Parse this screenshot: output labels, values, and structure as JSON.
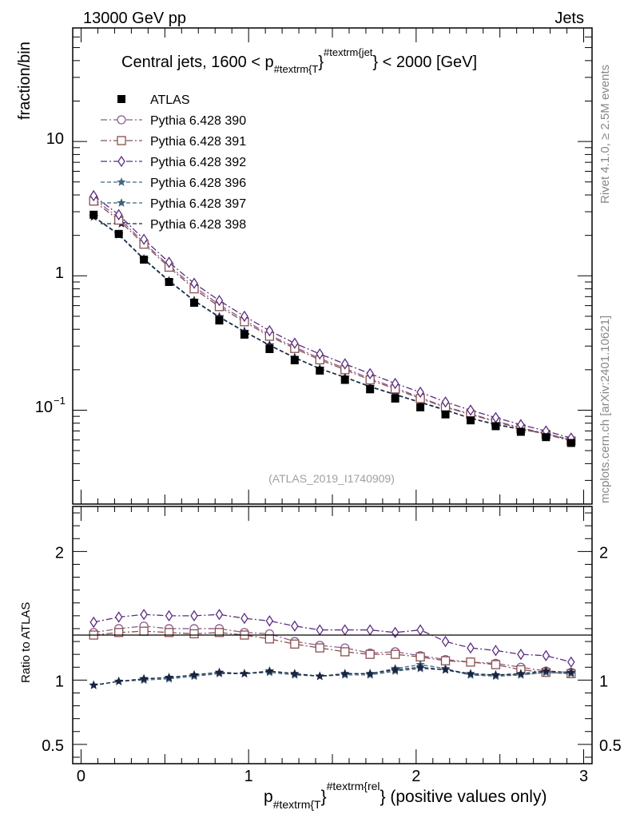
{
  "header": {
    "left": "13000 GeV pp",
    "right": "Jets"
  },
  "side_labels": {
    "top": "Rivet 4.1.0, ≥ 2.5M events",
    "bottom": "mcplots.cern.ch [arXiv:2401.10621]"
  },
  "watermark": "(ATLAS_2019_I1740909)",
  "colors": {
    "atlas": "#000000",
    "p390": "#8b5e8f",
    "p391": "#8a4f4f",
    "p392": "#5a2d82",
    "p396": "#3f6a82",
    "p397": "#3a6478",
    "p398": "#1a2340"
  },
  "chart_data": [
    {
      "type": "line",
      "name": "main",
      "title_parts": {
        "pre": "Central jets, 1600 < p",
        "sub": "#textrm{T",
        "mid": "}",
        "sup": "#textrm{jet",
        "post": "} < 2000 [GeV]"
      },
      "ylabel": "fraction/bin",
      "yscale": "log",
      "ylim": [
        0.02,
        70
      ],
      "xlim": [
        -0.05,
        3.05
      ],
      "ytick_labels": {
        "ten": "10",
        "one": "1",
        "tenth_base": "10",
        "tenth_exp": "−1"
      },
      "x": [
        0.075,
        0.225,
        0.375,
        0.525,
        0.675,
        0.825,
        0.975,
        1.125,
        1.275,
        1.425,
        1.575,
        1.725,
        1.875,
        2.025,
        2.175,
        2.325,
        2.475,
        2.625,
        2.775,
        2.925
      ],
      "series": [
        {
          "name": "ATLAS",
          "marker": "filled-square",
          "values": [
            2.85,
            2.05,
            1.32,
            0.9,
            0.63,
            0.465,
            0.365,
            0.285,
            0.235,
            0.197,
            0.168,
            0.143,
            0.122,
            0.105,
            0.093,
            0.084,
            0.076,
            0.069,
            0.063,
            0.057
          ]
        },
        {
          "name": "Pythia 6.428 390",
          "marker": "open-circle",
          "values": [
            3.75,
            2.7,
            1.77,
            1.19,
            0.83,
            0.61,
            0.47,
            0.363,
            0.295,
            0.243,
            0.205,
            0.172,
            0.147,
            0.124,
            0.106,
            0.094,
            0.083,
            0.074,
            0.067,
            0.06
          ]
        },
        {
          "name": "Pythia 6.428 391",
          "marker": "open-square",
          "values": [
            3.6,
            2.6,
            1.72,
            1.16,
            0.8,
            0.59,
            0.455,
            0.355,
            0.288,
            0.237,
            0.2,
            0.168,
            0.144,
            0.122,
            0.105,
            0.093,
            0.082,
            0.073,
            0.066,
            0.059
          ]
        },
        {
          "name": "Pythia 6.428 392",
          "marker": "open-diamond",
          "values": [
            3.95,
            2.85,
            1.87,
            1.26,
            0.88,
            0.655,
            0.5,
            0.39,
            0.315,
            0.262,
            0.221,
            0.187,
            0.158,
            0.136,
            0.115,
            0.1,
            0.088,
            0.078,
            0.07,
            0.062
          ]
        },
        {
          "name": "Pythia 6.428 396",
          "marker": "star",
          "values": [
            2.75,
            2.03,
            1.33,
            0.92,
            0.655,
            0.495,
            0.385,
            0.305,
            0.247,
            0.204,
            0.176,
            0.15,
            0.131,
            0.115,
            0.101,
            0.087,
            0.079,
            0.072,
            0.067,
            0.06
          ]
        },
        {
          "name": "Pythia 6.428 397",
          "marker": "star",
          "values": [
            2.74,
            2.02,
            1.32,
            0.91,
            0.65,
            0.49,
            0.383,
            0.303,
            0.245,
            0.203,
            0.175,
            0.149,
            0.13,
            0.114,
            0.1,
            0.087,
            0.078,
            0.072,
            0.067,
            0.06
          ]
        },
        {
          "name": "Pythia 6.428 398",
          "marker": "star",
          "values": [
            2.76,
            2.04,
            1.34,
            0.92,
            0.655,
            0.495,
            0.386,
            0.305,
            0.246,
            0.204,
            0.176,
            0.15,
            0.131,
            0.114,
            0.1,
            0.087,
            0.078,
            0.072,
            0.067,
            0.06
          ]
        }
      ]
    },
    {
      "type": "line",
      "name": "ratio",
      "ylabel": "Ratio to ATLAS",
      "ylim": [
        0.35,
        2.35
      ],
      "yticks": [
        0.5,
        1,
        2
      ],
      "ytick_labels": [
        "0.5",
        "1",
        "2"
      ],
      "xlim": [
        -0.05,
        3.05
      ],
      "xticks": [
        0,
        1,
        2,
        3
      ],
      "xtick_labels": [
        "0",
        "1",
        "2",
        "3"
      ],
      "xlabel_parts": {
        "pre": "p",
        "sub": "#textrm{T",
        "mid": "}",
        "sup": "#textrm{rel",
        "post": "} (positive values only)"
      },
      "x": [
        0.075,
        0.225,
        0.375,
        0.525,
        0.675,
        0.825,
        0.975,
        1.125,
        1.275,
        1.425,
        1.575,
        1.725,
        1.875,
        2.025,
        2.175,
        2.325,
        2.475,
        2.625,
        2.775,
        2.925
      ],
      "series": [
        {
          "name": "Pythia 6.428 390",
          "values": [
            1.37,
            1.4,
            1.42,
            1.4,
            1.4,
            1.4,
            1.37,
            1.36,
            1.3,
            1.27,
            1.25,
            1.21,
            1.22,
            1.19,
            1.16,
            1.14,
            1.13,
            1.1,
            1.07,
            1.06
          ]
        },
        {
          "name": "Pythia 6.428 391",
          "values": [
            1.35,
            1.37,
            1.38,
            1.37,
            1.36,
            1.37,
            1.35,
            1.32,
            1.28,
            1.25,
            1.22,
            1.2,
            1.2,
            1.18,
            1.15,
            1.14,
            1.12,
            1.08,
            1.06,
            1.05
          ]
        },
        {
          "name": "Pythia 6.428 392",
          "values": [
            1.45,
            1.49,
            1.51,
            1.5,
            1.5,
            1.51,
            1.48,
            1.46,
            1.42,
            1.39,
            1.39,
            1.39,
            1.37,
            1.39,
            1.3,
            1.25,
            1.23,
            1.2,
            1.19,
            1.14
          ]
        },
        {
          "name": "Pythia 6.428 396",
          "values": [
            0.96,
            0.99,
            1.01,
            1.02,
            1.04,
            1.06,
            1.05,
            1.07,
            1.05,
            1.03,
            1.05,
            1.05,
            1.09,
            1.12,
            1.09,
            1.04,
            1.04,
            1.04,
            1.06,
            1.05
          ]
        },
        {
          "name": "Pythia 6.428 397",
          "values": [
            0.96,
            0.99,
            1.0,
            1.01,
            1.03,
            1.05,
            1.05,
            1.06,
            1.04,
            1.03,
            1.04,
            1.04,
            1.07,
            1.09,
            1.08,
            1.04,
            1.03,
            1.04,
            1.06,
            1.05
          ]
        },
        {
          "name": "Pythia 6.428 398",
          "values": [
            0.96,
            0.99,
            1.01,
            1.02,
            1.04,
            1.06,
            1.05,
            1.07,
            1.05,
            1.03,
            1.05,
            1.05,
            1.08,
            1.1,
            1.08,
            1.05,
            1.04,
            1.05,
            1.07,
            1.06
          ]
        }
      ]
    }
  ]
}
